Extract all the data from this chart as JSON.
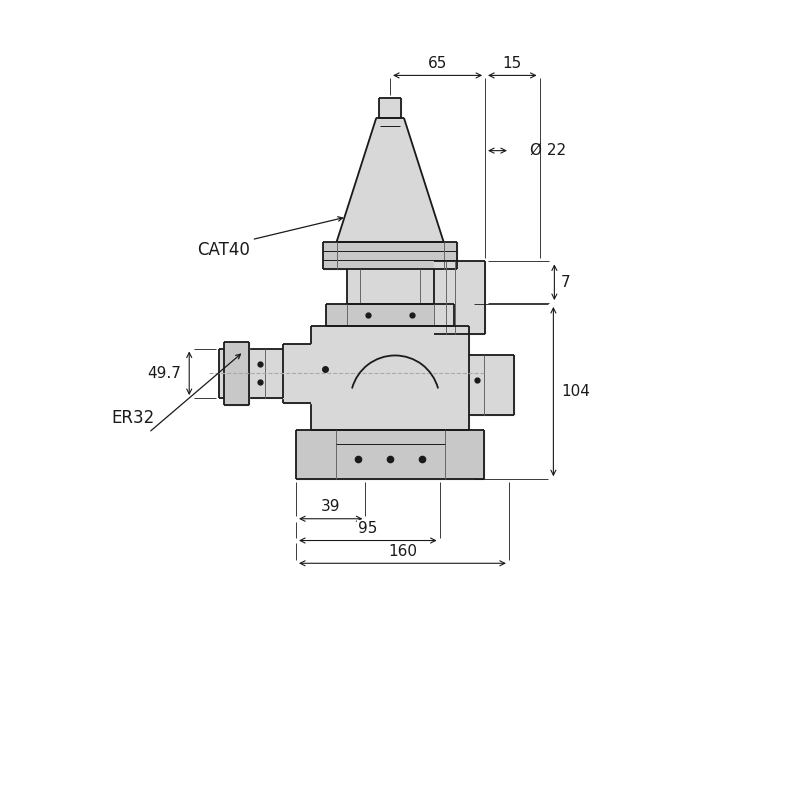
{
  "bg_color": "#ffffff",
  "line_color": "#1a1a1a",
  "dim_color": "#1a1a1a",
  "gray_fill": "#b8b8b8",
  "light_gray": "#d8d8d8",
  "mid_gray": "#c8c8c8",
  "annotations": {
    "CAT40": "CAT40",
    "ER32": "ER32",
    "dim_65": "65",
    "dim_15": "15",
    "dim_22": "Ø 22",
    "dim_7": "7",
    "dim_104": "104",
    "dim_49_7": "49.7",
    "dim_39": "39",
    "dim_95": "95",
    "dim_160": "160"
  },
  "figsize": [
    8.0,
    8.0
  ],
  "dpi": 100
}
